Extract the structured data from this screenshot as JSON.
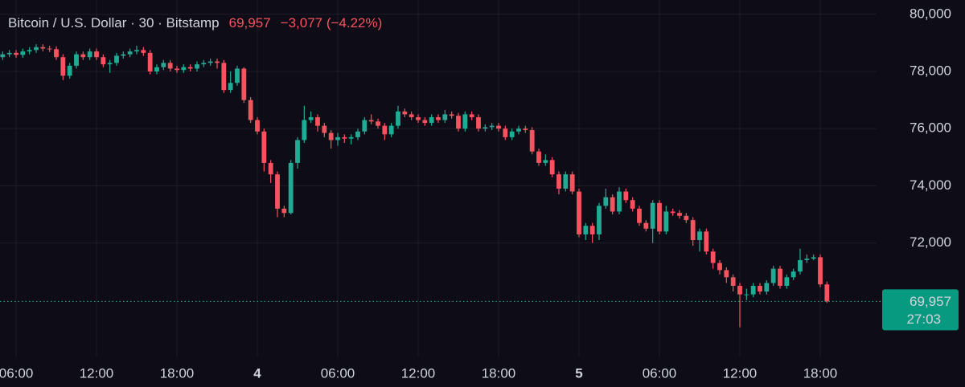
{
  "chart_data": {
    "type": "candlestick",
    "symbol": "Bitcoin / U.S. Dollar · 30 · Bitstamp",
    "change_text": "−3,077 (−4.22%)",
    "last_price": {
      "value": 69957,
      "label": "69,957"
    },
    "countdown": "27:03",
    "up_color": "#22ab94",
    "down_color": "#f7525f",
    "grid": true,
    "xlim": [
      4.8,
      70.2
    ],
    "ylim": [
      68000,
      80500
    ],
    "xticks": [
      {
        "value": 6,
        "label": "06:00"
      },
      {
        "value": 12,
        "label": "12:00"
      },
      {
        "value": 18,
        "label": "18:00"
      },
      {
        "value": 24,
        "label": "4"
      },
      {
        "value": 30,
        "label": "06:00"
      },
      {
        "value": 36,
        "label": "12:00"
      },
      {
        "value": 42,
        "label": "18:00"
      },
      {
        "value": 48,
        "label": "5"
      },
      {
        "value": 54,
        "label": "06:00"
      },
      {
        "value": 60,
        "label": "12:00"
      },
      {
        "value": 66,
        "label": "18:00"
      }
    ],
    "yticks": [
      {
        "value": 72000,
        "label": "72,000"
      },
      {
        "value": 74000,
        "label": "74,000"
      },
      {
        "value": 76000,
        "label": "76,000"
      },
      {
        "value": 78000,
        "label": "78,000"
      },
      {
        "value": 80000,
        "label": "80,000"
      }
    ],
    "x": [
      5,
      5.5,
      6,
      6.5,
      7,
      7.5,
      8,
      8.5,
      9,
      9.5,
      10,
      10.5,
      11,
      11.5,
      12,
      12.5,
      13,
      13.5,
      14,
      14.5,
      15,
      15.5,
      16,
      16.5,
      17,
      17.5,
      18,
      18.5,
      19,
      19.5,
      20,
      20.5,
      21,
      21.5,
      22,
      22.5,
      23,
      23.5,
      24,
      24.5,
      25,
      25.5,
      26,
      26.5,
      27,
      27.5,
      28,
      28.5,
      29,
      29.5,
      30,
      30.5,
      31,
      31.5,
      32,
      32.5,
      33,
      33.5,
      34,
      34.5,
      35,
      35.5,
      36,
      36.5,
      37,
      37.5,
      38,
      38.5,
      39,
      39.5,
      40,
      40.5,
      41,
      41.5,
      42,
      42.5,
      43,
      43.5,
      44,
      44.5,
      45,
      45.5,
      46,
      46.5,
      47,
      47.5,
      48,
      48.5,
      49,
      49.5,
      50,
      50.5,
      51,
      51.5,
      52,
      52.5,
      53,
      53.5,
      54,
      54.5,
      55,
      55.5,
      56,
      56.5,
      57,
      57.5,
      58,
      58.5,
      59,
      59.5,
      60,
      60.5,
      61,
      61.5,
      62,
      62.5,
      63,
      63.5,
      64,
      64.5,
      65,
      65.5,
      66,
      66.5
    ],
    "open": [
      78500,
      78600,
      78650,
      78580,
      78700,
      78750,
      78850,
      78800,
      78780,
      78500,
      77850,
      78200,
      78600,
      78500,
      78700,
      78500,
      78250,
      78300,
      78550,
      78600,
      78700,
      78750,
      78650,
      78000,
      78150,
      78300,
      78100,
      78050,
      78150,
      78100,
      78250,
      78300,
      78350,
      78300,
      77350,
      77600,
      78100,
      77000,
      76300,
      75900,
      74800,
      74400,
      73200,
      73050,
      74800,
      75600,
      76300,
      76400,
      76100,
      75850,
      75600,
      75700,
      75650,
      75700,
      75900,
      76300,
      76250,
      76100,
      75800,
      76100,
      76600,
      76500,
      76400,
      76300,
      76200,
      76400,
      76300,
      76500,
      76450,
      76000,
      76500,
      76400,
      76000,
      76050,
      76100,
      76000,
      75700,
      75900,
      76000,
      75950,
      75200,
      74800,
      74900,
      74400,
      73900,
      74400,
      73800,
      72300,
      72600,
      72300,
      73300,
      73600,
      73100,
      73800,
      73500,
      73200,
      72700,
      72500,
      73400,
      72400,
      73100,
      73050,
      72950,
      72800,
      72100,
      72400,
      71700,
      71300,
      71050,
      70800,
      70500,
      70200,
      70200,
      70500,
      70300,
      70600,
      71100,
      70500,
      70800,
      71000,
      71400,
      71450,
      71500,
      70550
    ],
    "high": [
      78700,
      78750,
      78750,
      78800,
      78850,
      78950,
      78950,
      78900,
      78880,
      78600,
      78300,
      78700,
      78700,
      78800,
      78800,
      78600,
      78400,
      78650,
      78700,
      78800,
      78900,
      78850,
      78750,
      78250,
      78400,
      78400,
      78200,
      78250,
      78250,
      78350,
      78400,
      78450,
      78450,
      78400,
      78000,
      78200,
      78150,
      77100,
      76400,
      76000,
      74900,
      74500,
      73300,
      74900,
      75700,
      76800,
      76600,
      76500,
      76200,
      75950,
      75850,
      75800,
      75800,
      76000,
      76400,
      76500,
      76350,
      76200,
      76200,
      76800,
      76700,
      76600,
      76500,
      76400,
      76500,
      76500,
      76650,
      76600,
      76550,
      76600,
      76600,
      76500,
      76150,
      76200,
      76200,
      76100,
      76000,
      76100,
      76100,
      76050,
      75300,
      75100,
      75000,
      74500,
      74500,
      74500,
      73900,
      72700,
      72700,
      73400,
      73900,
      73700,
      73950,
      73900,
      73600,
      73300,
      72800,
      73500,
      73500,
      73300,
      73200,
      73150,
      73050,
      72900,
      72500,
      72500,
      71800,
      71400,
      71150,
      70900,
      70600,
      70400,
      70600,
      70600,
      70700,
      71200,
      71200,
      70900,
      71100,
      71800,
      71600,
      71600,
      71600,
      70650
    ],
    "low": [
      78400,
      78500,
      78480,
      78480,
      78600,
      78650,
      78700,
      78680,
      78400,
      77700,
      77750,
      78100,
      78400,
      78400,
      78400,
      78150,
      77950,
      78200,
      78450,
      78500,
      78600,
      78550,
      77900,
      77900,
      78050,
      78000,
      77950,
      77950,
      78000,
      78000,
      78150,
      78200,
      78100,
      77250,
      77250,
      77500,
      76900,
      76200,
      75800,
      74500,
      74100,
      72900,
      72900,
      73000,
      74600,
      75500,
      76200,
      75900,
      75700,
      75300,
      75400,
      75500,
      75450,
      75600,
      75800,
      76150,
      76000,
      75600,
      75700,
      76000,
      76400,
      76300,
      76200,
      76100,
      76100,
      76200,
      76200,
      76350,
      75900,
      75900,
      76300,
      75900,
      75900,
      75950,
      75900,
      75600,
      75600,
      75800,
      75850,
      75100,
      74700,
      74700,
      74300,
      73700,
      73800,
      73700,
      72200,
      72100,
      72000,
      72100,
      73200,
      73000,
      73000,
      73400,
      73100,
      72600,
      72400,
      72000,
      72300,
      72300,
      72950,
      72850,
      72700,
      71900,
      71700,
      71600,
      71100,
      70900,
      70600,
      70300,
      69050,
      70000,
      70100,
      70200,
      70200,
      70500,
      70400,
      70400,
      70700,
      70900,
      71300,
      71400,
      70450,
      69900
    ],
    "close": [
      78600,
      78650,
      78580,
      78700,
      78750,
      78850,
      78800,
      78780,
      78500,
      77850,
      78200,
      78600,
      78500,
      78700,
      78500,
      78250,
      78300,
      78550,
      78600,
      78700,
      78750,
      78650,
      78000,
      78150,
      78300,
      78100,
      78050,
      78150,
      78100,
      78250,
      78300,
      78350,
      78300,
      77350,
      77600,
      78100,
      77000,
      76300,
      75900,
      74800,
      74400,
      73200,
      73050,
      74800,
      75600,
      76300,
      76400,
      76100,
      75850,
      75600,
      75700,
      75650,
      75700,
      75900,
      76300,
      76250,
      76100,
      75800,
      76100,
      76600,
      76500,
      76400,
      76300,
      76200,
      76400,
      76300,
      76500,
      76450,
      76000,
      76500,
      76400,
      76000,
      76050,
      76100,
      76000,
      75700,
      75900,
      76000,
      75950,
      75200,
      74800,
      74900,
      74400,
      73900,
      74400,
      73800,
      72300,
      72600,
      72300,
      73300,
      73600,
      73100,
      73800,
      73500,
      73200,
      72700,
      72500,
      73400,
      72400,
      73100,
      73050,
      72950,
      72800,
      72100,
      72400,
      71700,
      71300,
      71050,
      70800,
      70500,
      70200,
      70200,
      70500,
      70300,
      70600,
      71100,
      70500,
      70800,
      71000,
      71400,
      71450,
      71500,
      70550,
      69957
    ]
  }
}
